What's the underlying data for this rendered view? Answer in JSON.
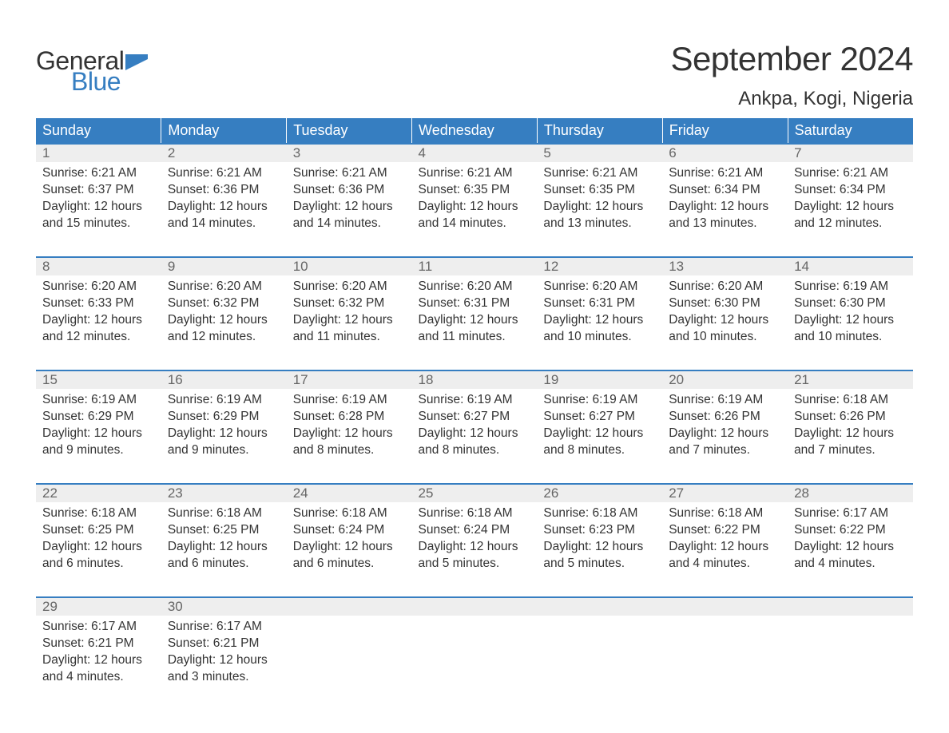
{
  "brand": {
    "line1": "General",
    "line2": "Blue",
    "flag_color": "#367ec1"
  },
  "title": "September 2024",
  "location": "Ankpa, Kogi, Nigeria",
  "colors": {
    "header_bg": "#367ec1",
    "header_text": "#ffffff",
    "week_border": "#367ec1",
    "daynum_bg": "#eeeeee",
    "daynum_text": "#666666",
    "body_text": "#333333",
    "background": "#ffffff"
  },
  "dow": [
    "Sunday",
    "Monday",
    "Tuesday",
    "Wednesday",
    "Thursday",
    "Friday",
    "Saturday"
  ],
  "labels": {
    "sunrise": "Sunrise: ",
    "sunset": "Sunset: ",
    "daylight_prefix": "Daylight: ",
    "daylight_mid": " hours and ",
    "daylight_suffix": " minutes."
  },
  "weeks": [
    [
      {
        "n": 1,
        "sunrise": "6:21 AM",
        "sunset": "6:37 PM",
        "dh": 12,
        "dm": 15
      },
      {
        "n": 2,
        "sunrise": "6:21 AM",
        "sunset": "6:36 PM",
        "dh": 12,
        "dm": 14
      },
      {
        "n": 3,
        "sunrise": "6:21 AM",
        "sunset": "6:36 PM",
        "dh": 12,
        "dm": 14
      },
      {
        "n": 4,
        "sunrise": "6:21 AM",
        "sunset": "6:35 PM",
        "dh": 12,
        "dm": 14
      },
      {
        "n": 5,
        "sunrise": "6:21 AM",
        "sunset": "6:35 PM",
        "dh": 12,
        "dm": 13
      },
      {
        "n": 6,
        "sunrise": "6:21 AM",
        "sunset": "6:34 PM",
        "dh": 12,
        "dm": 13
      },
      {
        "n": 7,
        "sunrise": "6:21 AM",
        "sunset": "6:34 PM",
        "dh": 12,
        "dm": 12
      }
    ],
    [
      {
        "n": 8,
        "sunrise": "6:20 AM",
        "sunset": "6:33 PM",
        "dh": 12,
        "dm": 12
      },
      {
        "n": 9,
        "sunrise": "6:20 AM",
        "sunset": "6:32 PM",
        "dh": 12,
        "dm": 12
      },
      {
        "n": 10,
        "sunrise": "6:20 AM",
        "sunset": "6:32 PM",
        "dh": 12,
        "dm": 11
      },
      {
        "n": 11,
        "sunrise": "6:20 AM",
        "sunset": "6:31 PM",
        "dh": 12,
        "dm": 11
      },
      {
        "n": 12,
        "sunrise": "6:20 AM",
        "sunset": "6:31 PM",
        "dh": 12,
        "dm": 10
      },
      {
        "n": 13,
        "sunrise": "6:20 AM",
        "sunset": "6:30 PM",
        "dh": 12,
        "dm": 10
      },
      {
        "n": 14,
        "sunrise": "6:19 AM",
        "sunset": "6:30 PM",
        "dh": 12,
        "dm": 10
      }
    ],
    [
      {
        "n": 15,
        "sunrise": "6:19 AM",
        "sunset": "6:29 PM",
        "dh": 12,
        "dm": 9
      },
      {
        "n": 16,
        "sunrise": "6:19 AM",
        "sunset": "6:29 PM",
        "dh": 12,
        "dm": 9
      },
      {
        "n": 17,
        "sunrise": "6:19 AM",
        "sunset": "6:28 PM",
        "dh": 12,
        "dm": 8
      },
      {
        "n": 18,
        "sunrise": "6:19 AM",
        "sunset": "6:27 PM",
        "dh": 12,
        "dm": 8
      },
      {
        "n": 19,
        "sunrise": "6:19 AM",
        "sunset": "6:27 PM",
        "dh": 12,
        "dm": 8
      },
      {
        "n": 20,
        "sunrise": "6:19 AM",
        "sunset": "6:26 PM",
        "dh": 12,
        "dm": 7
      },
      {
        "n": 21,
        "sunrise": "6:18 AM",
        "sunset": "6:26 PM",
        "dh": 12,
        "dm": 7
      }
    ],
    [
      {
        "n": 22,
        "sunrise": "6:18 AM",
        "sunset": "6:25 PM",
        "dh": 12,
        "dm": 6
      },
      {
        "n": 23,
        "sunrise": "6:18 AM",
        "sunset": "6:25 PM",
        "dh": 12,
        "dm": 6
      },
      {
        "n": 24,
        "sunrise": "6:18 AM",
        "sunset": "6:24 PM",
        "dh": 12,
        "dm": 6
      },
      {
        "n": 25,
        "sunrise": "6:18 AM",
        "sunset": "6:24 PM",
        "dh": 12,
        "dm": 5
      },
      {
        "n": 26,
        "sunrise": "6:18 AM",
        "sunset": "6:23 PM",
        "dh": 12,
        "dm": 5
      },
      {
        "n": 27,
        "sunrise": "6:18 AM",
        "sunset": "6:22 PM",
        "dh": 12,
        "dm": 4
      },
      {
        "n": 28,
        "sunrise": "6:17 AM",
        "sunset": "6:22 PM",
        "dh": 12,
        "dm": 4
      }
    ],
    [
      {
        "n": 29,
        "sunrise": "6:17 AM",
        "sunset": "6:21 PM",
        "dh": 12,
        "dm": 4
      },
      {
        "n": 30,
        "sunrise": "6:17 AM",
        "sunset": "6:21 PM",
        "dh": 12,
        "dm": 3
      },
      null,
      null,
      null,
      null,
      null
    ]
  ]
}
